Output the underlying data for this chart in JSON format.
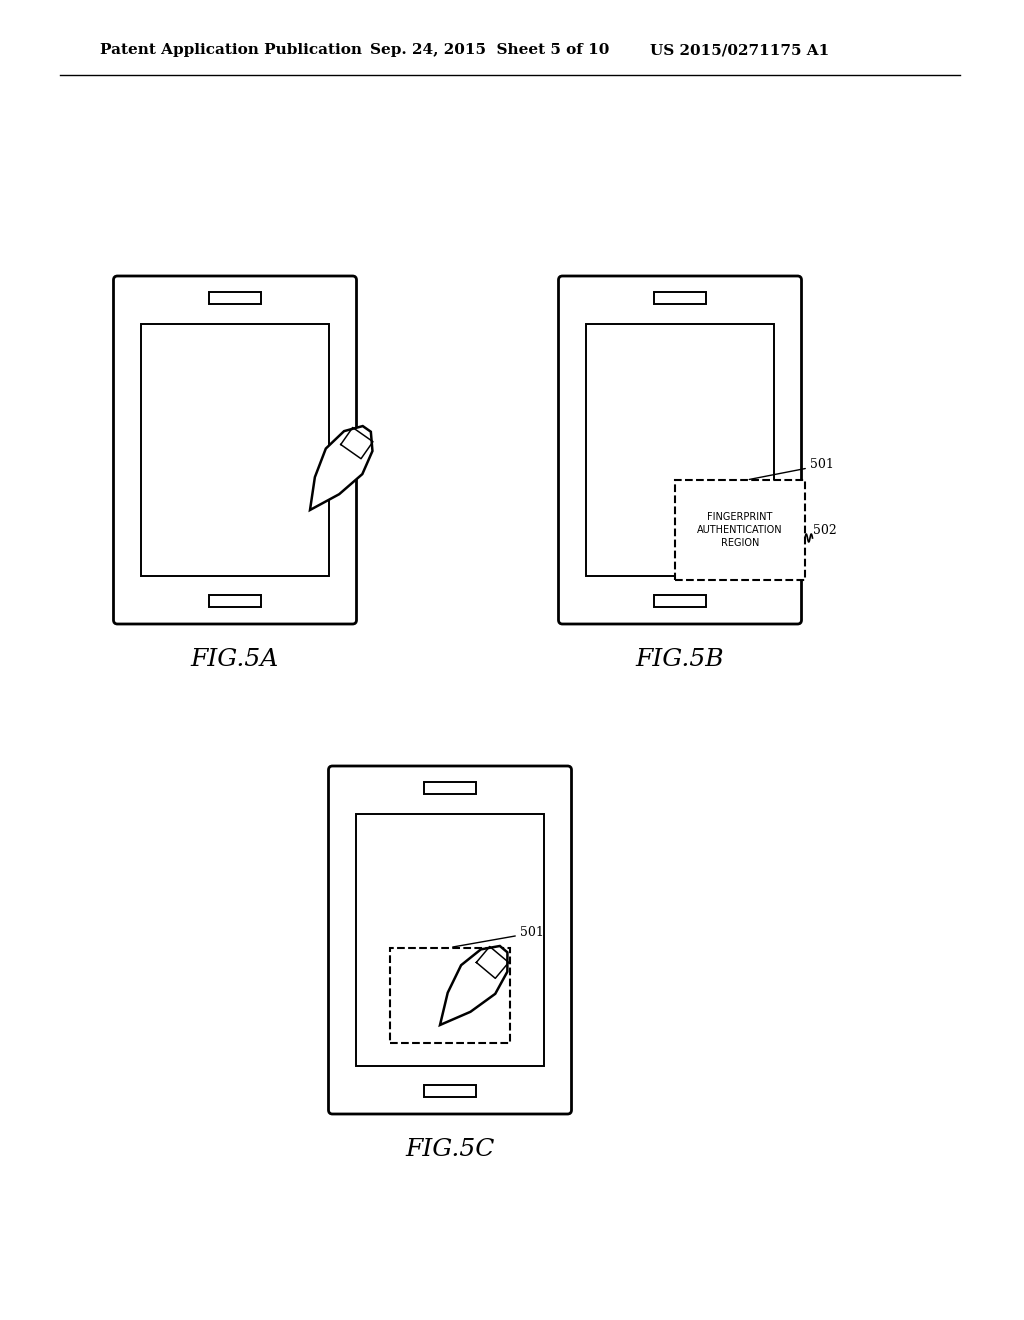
{
  "bg_color": "#ffffff",
  "line_color": "#000000",
  "header_text1": "Patent Application Publication",
  "header_text2": "Sep. 24, 2015  Sheet 5 of 10",
  "header_text3": "US 2015/0271175 A1",
  "fig5a_label": "FIG.5A",
  "fig5b_label": "FIG.5B",
  "fig5c_label": "FIG.5C",
  "label_501": "501",
  "label_502": "502",
  "auth_region_text": "FINGERPRINT\nAUTHENTICATION\nREGION"
}
